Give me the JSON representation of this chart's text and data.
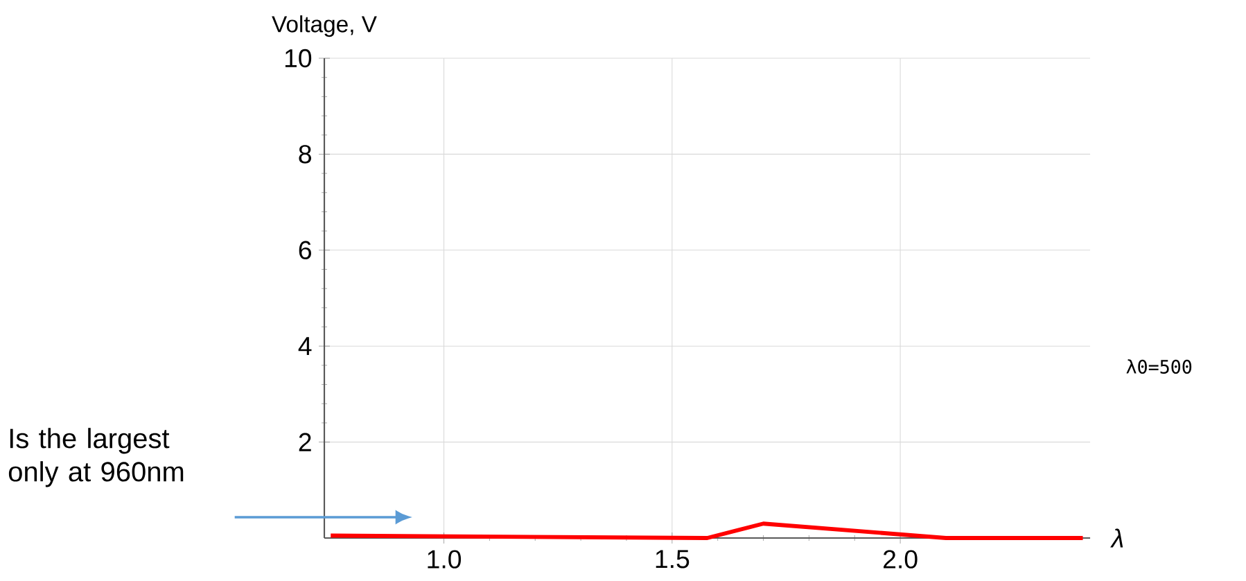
{
  "chart_data": {
    "type": "line",
    "xlabel": "λ",
    "ylabel": "Voltage, V",
    "x": [
      0.752,
      1.577,
      1.7,
      2.1,
      2.4
    ],
    "values": [
      0.05,
      0,
      0.3,
      0,
      0
    ],
    "color": "#ff0000",
    "xlim": [
      0.738,
      2.416
    ],
    "xticks": [
      {
        "value": 1,
        "label": "1.0"
      },
      {
        "value": 1.5,
        "label": "1.5"
      },
      {
        "value": 2,
        "label": "2.0"
      }
    ],
    "ylim": [
      0,
      10
    ],
    "yticks": [
      2,
      4,
      6,
      8,
      10
    ],
    "grid": true,
    "marker": "none",
    "line_style": "solid",
    "annotations": [
      "Is the largest only at 960nm",
      "λ0=500"
    ]
  }
}
